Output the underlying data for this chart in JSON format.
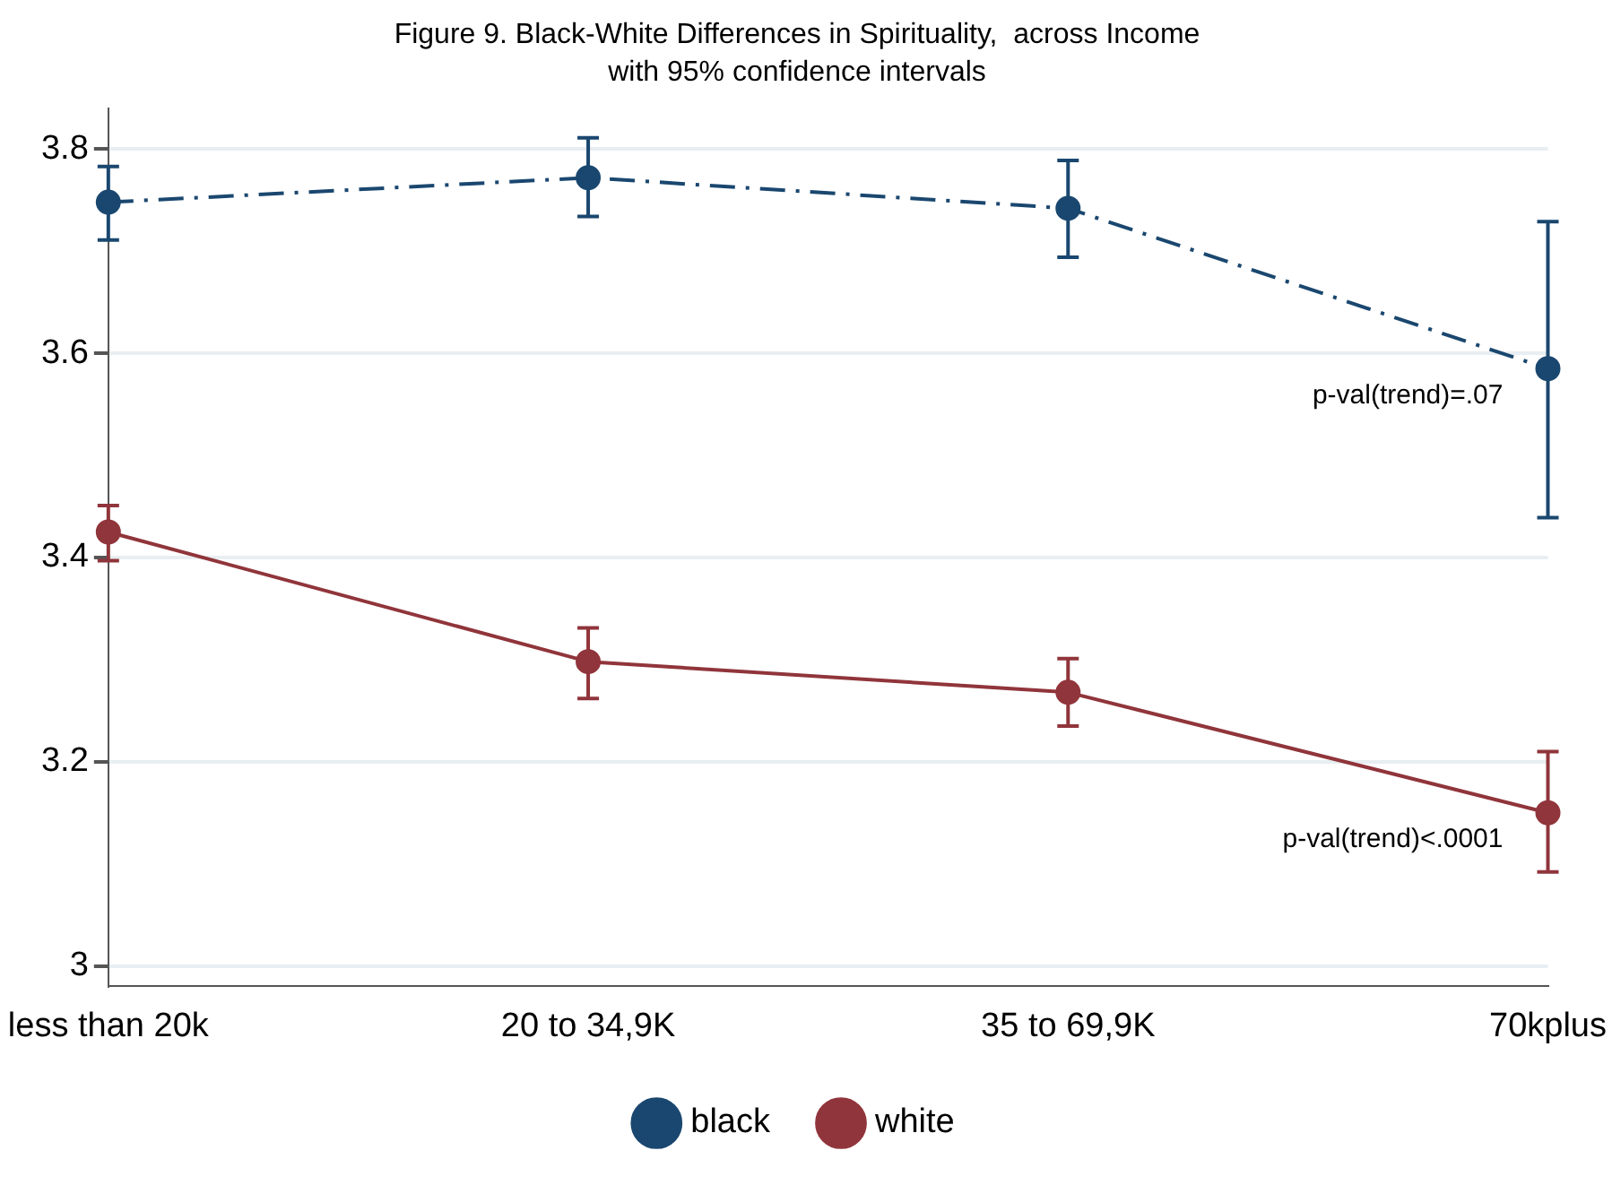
{
  "chart_data": {
    "type": "line",
    "title": "Figure 9. Black-White Differences in Spirituality,  across Income",
    "subtitle": "with 95% confidence intervals",
    "categories": [
      "less than 20k",
      "20 to 34,9K",
      "35 to 69,9K",
      "70kplus"
    ],
    "series": [
      {
        "name": "black",
        "color": "#1a476f",
        "line_style": "dashed",
        "values": [
          3.748,
          3.772,
          3.742,
          3.585
        ],
        "errors": [
          [
            3.711,
            3.783
          ],
          [
            3.734,
            3.811
          ],
          [
            3.694,
            3.789
          ],
          [
            3.439,
            3.729
          ]
        ]
      },
      {
        "name": "white",
        "color": "#90353b",
        "line_style": "solid",
        "values": [
          3.425,
          3.298,
          3.268,
          3.15
        ],
        "errors": [
          [
            3.397,
            3.451
          ],
          [
            3.262,
            3.331
          ],
          [
            3.235,
            3.301
          ],
          [
            3.092,
            3.21
          ]
        ]
      }
    ],
    "annotations": [
      {
        "text": "p-val(trend)=.07",
        "x": "70kplus",
        "y": 3.585
      },
      {
        "text": "p-val(trend)<.0001",
        "x": "70kplus",
        "y": 3.15
      }
    ],
    "ylim": [
      2.98,
      3.84
    ],
    "yticks": [
      3,
      3.2,
      3.4,
      3.6,
      3.8
    ],
    "grid": "y",
    "legend": "bottom",
    "marker": "circle"
  }
}
